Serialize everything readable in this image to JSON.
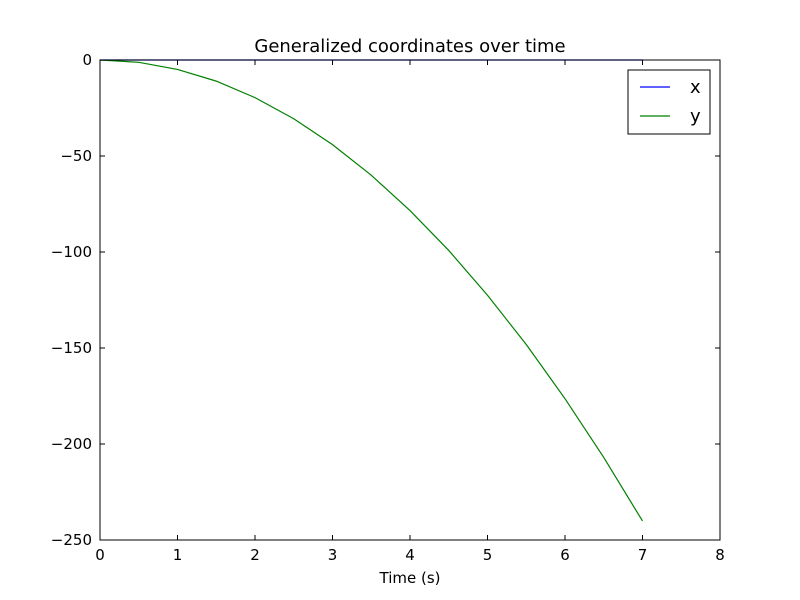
{
  "chart_data": {
    "type": "line",
    "title": "Generalized coordinates over time",
    "xlabel": "Time (s)",
    "ylabel": "",
    "xlim": [
      0,
      8
    ],
    "ylim": [
      -250,
      0
    ],
    "xticks": [
      0,
      1,
      2,
      3,
      4,
      5,
      6,
      7,
      8
    ],
    "yticks": [
      0,
      -50,
      -100,
      -150,
      -200,
      -250
    ],
    "xtick_labels": [
      "0",
      "1",
      "2",
      "3",
      "4",
      "5",
      "6",
      "7",
      "8"
    ],
    "ytick_labels": [
      "0",
      "−50",
      "−100",
      "−150",
      "−200",
      "−250"
    ],
    "grid": false,
    "legend_position": "top-right",
    "series": [
      {
        "name": "x",
        "color": "#0000ff",
        "x": [
          0,
          0.5,
          1,
          1.5,
          2,
          2.5,
          3,
          3.5,
          4,
          4.5,
          5,
          5.5,
          6,
          6.5,
          7
        ],
        "y": [
          0,
          0,
          0,
          0,
          0,
          0,
          0,
          0,
          0,
          0,
          0,
          0,
          0,
          0,
          0
        ]
      },
      {
        "name": "y",
        "color": "#008000",
        "x": [
          0,
          0.5,
          1,
          1.5,
          2,
          2.5,
          3,
          3.5,
          4,
          4.5,
          5,
          5.5,
          6,
          6.5,
          7
        ],
        "y": [
          0,
          -1.2,
          -4.9,
          -11.0,
          -19.6,
          -30.6,
          -44.1,
          -60.0,
          -78.4,
          -99.2,
          -122.5,
          -148.2,
          -176.4,
          -207.0,
          -240.1
        ]
      }
    ]
  }
}
